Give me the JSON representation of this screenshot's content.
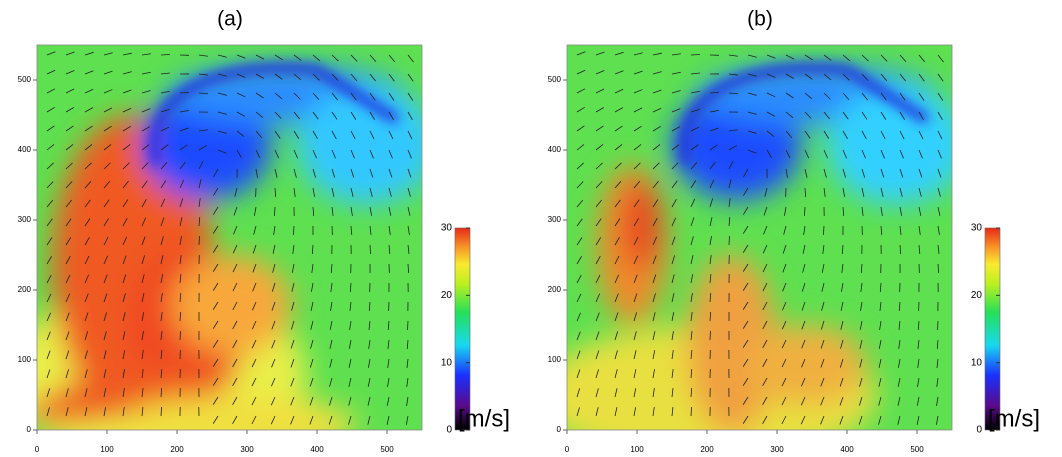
{
  "chart_data": [
    {
      "type": "heatmap",
      "title": "(a)",
      "xlim": [
        0,
        550
      ],
      "ylim": [
        0,
        550
      ],
      "xticks": [
        0,
        100,
        200,
        300,
        400,
        500
      ],
      "yticks": [
        0,
        100,
        200,
        300,
        400,
        500
      ],
      "colorbar": {
        "label": "[m/s]",
        "lim": [
          0,
          30
        ],
        "ticks": [
          0,
          10,
          20,
          30
        ]
      }
    },
    {
      "type": "heatmap",
      "title": "(b)",
      "xlim": [
        0,
        550
      ],
      "ylim": [
        0,
        550
      ],
      "xticks": [
        0,
        100,
        200,
        300,
        400,
        500
      ],
      "yticks": [
        0,
        100,
        200,
        300,
        400,
        500
      ],
      "colorbar": {
        "label": "[m/s]",
        "lim": [
          0,
          30
        ],
        "ticks": [
          0,
          10,
          20,
          30
        ]
      }
    }
  ]
}
